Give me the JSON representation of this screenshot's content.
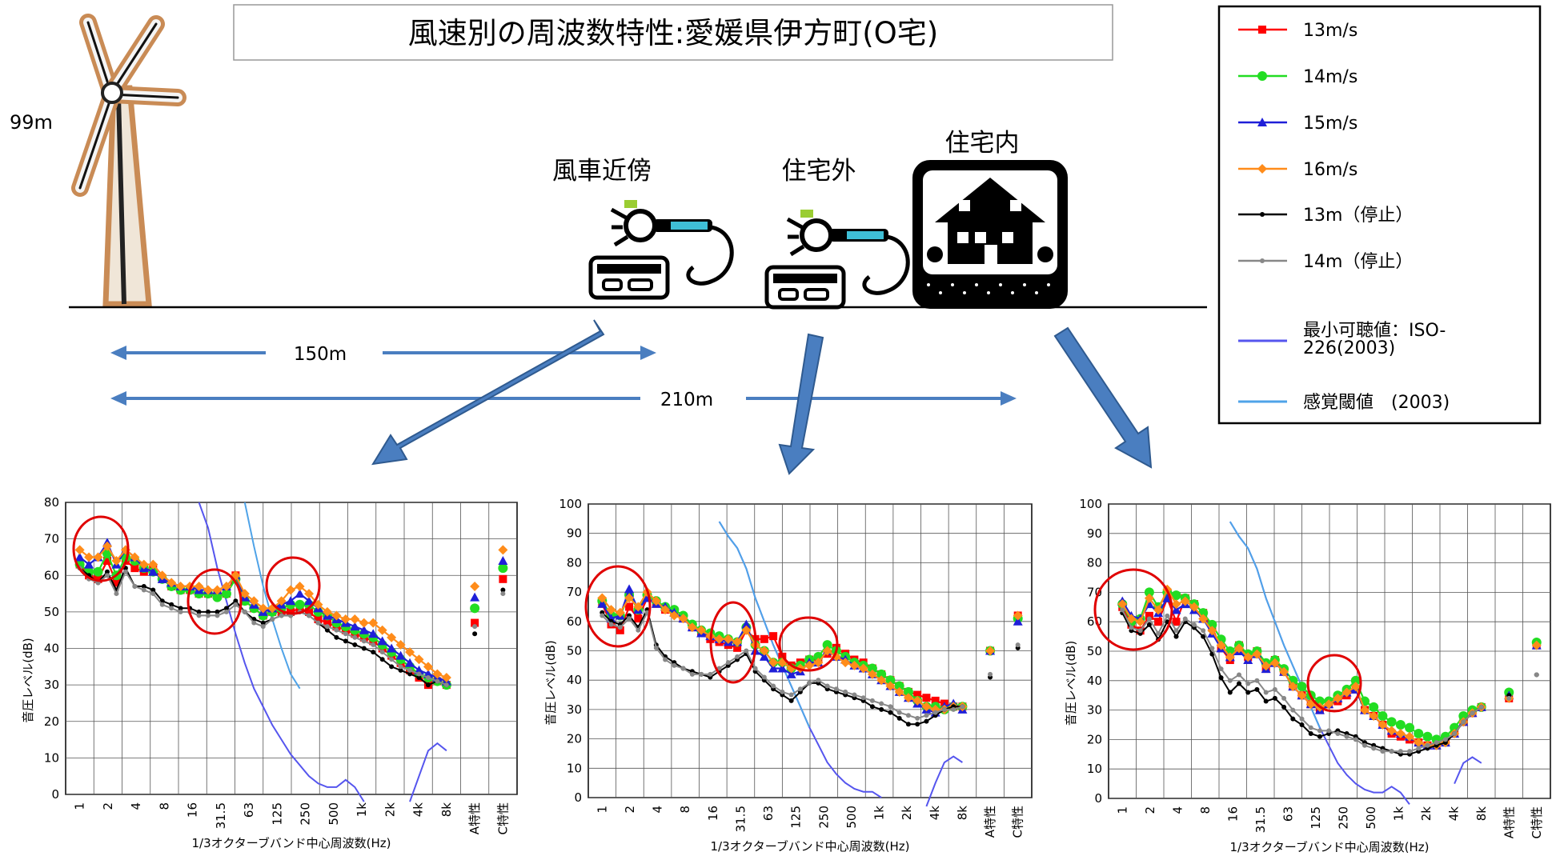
{
  "title": "風速別の周波数特性:愛媛県伊方町(O宅)",
  "scene": {
    "height_label": "99m",
    "loc_near": "風車近傍",
    "loc_outside": "住宅外",
    "loc_inside": "住宅内",
    "dist_150": "150m",
    "dist_210": "210m"
  },
  "legend": [
    {
      "label": "13m/s",
      "color": "#ff0000",
      "marker": "square"
    },
    {
      "label": "14m/s",
      "color": "#22dd22",
      "marker": "circle"
    },
    {
      "label": "15m/s",
      "color": "#1f1fd8",
      "marker": "triangle"
    },
    {
      "label": "16m/s",
      "color": "#ff8c1a",
      "marker": "diamond"
    },
    {
      "label": "13m（停止）",
      "color": "#000000",
      "marker": "dot"
    },
    {
      "label": "14m（停止）",
      "color": "#888888",
      "marker": "dot"
    },
    {
      "label": "最小可聴値：ISO-226(2003)",
      "color": "#5555ee",
      "marker": "none"
    },
    {
      "label": "感覚閾値　(2003)",
      "color": "#4fa3e8",
      "marker": "none"
    }
  ],
  "chart_data": [
    {
      "type": "line",
      "name": "風車近傍",
      "xlabel": "1/3オクターブバンド中心周波数(Hz)",
      "ylabel": "音圧レベル(dB)",
      "ylim": [
        0,
        80
      ],
      "yticks": [
        0,
        10,
        20,
        30,
        40,
        50,
        60,
        70,
        80
      ],
      "x_tick_labels": [
        "1",
        "2",
        "4",
        "8",
        "16",
        "31.5",
        "63",
        "125",
        "250",
        "500",
        "1k",
        "2k",
        "4k",
        "8k",
        "A特性",
        "C特性"
      ],
      "series": [
        {
          "name": "13m/s",
          "values": [
            63,
            60,
            59,
            64,
            58,
            64,
            62,
            61,
            62,
            59,
            57,
            56,
            56,
            55,
            55,
            55,
            55,
            60,
            53,
            51,
            49,
            50,
            50,
            50,
            51,
            50,
            48,
            47,
            46,
            45,
            44,
            43,
            42,
            40,
            38,
            36,
            34,
            32,
            30,
            31,
            30
          ],
          "A": 47,
          "C": 59
        },
        {
          "name": "14m/s",
          "values": [
            63,
            61,
            61,
            66,
            60,
            65,
            64,
            62,
            61,
            59,
            57,
            56,
            56,
            55,
            55,
            54,
            55,
            59,
            53,
            51,
            49,
            50,
            51,
            52,
            52,
            52,
            50,
            49,
            47,
            46,
            45,
            44,
            43,
            41,
            39,
            37,
            35,
            33,
            32,
            31,
            30
          ],
          "A": 51,
          "C": 62
        },
        {
          "name": "15m/s",
          "values": [
            65,
            63,
            65,
            69,
            63,
            67,
            65,
            62,
            61,
            59,
            58,
            57,
            57,
            56,
            56,
            56,
            57,
            60,
            54,
            52,
            50,
            51,
            52,
            53,
            55,
            53,
            51,
            49,
            48,
            47,
            46,
            45,
            44,
            42,
            40,
            38,
            36,
            34,
            33,
            32,
            31
          ],
          "A": 54,
          "C": 64
        },
        {
          "name": "16m/s",
          "values": [
            67,
            65,
            65,
            68,
            64,
            67,
            65,
            63,
            63,
            60,
            58,
            57,
            57,
            57,
            56,
            56,
            57,
            60,
            55,
            53,
            51,
            51,
            53,
            56,
            57,
            55,
            52,
            50,
            49,
            48,
            48,
            47,
            47,
            45,
            43,
            41,
            39,
            37,
            35,
            33,
            32
          ],
          "A": 57,
          "C": 67
        },
        {
          "name": "13m（停止）",
          "values": [
            62,
            60,
            58,
            61,
            56,
            62,
            57,
            57,
            56,
            53,
            52,
            51,
            51,
            50,
            50,
            50,
            51,
            53,
            50,
            48,
            47,
            48,
            49,
            49,
            50,
            49,
            47,
            45,
            43,
            42,
            41,
            40,
            39,
            37,
            35,
            34,
            33,
            32,
            30,
            31,
            30
          ],
          "A": 44,
          "C": 56
        },
        {
          "name": "14m（停止）",
          "values": [
            62,
            59,
            58,
            60,
            55,
            61,
            57,
            56,
            55,
            52,
            51,
            50,
            50,
            49,
            49,
            49,
            50,
            52,
            50,
            47,
            46,
            48,
            49,
            49,
            50,
            49,
            47,
            46,
            45,
            44,
            43,
            42,
            41,
            39,
            37,
            35,
            34,
            33,
            32,
            31,
            30
          ],
          "A": 46,
          "C": 55
        }
      ],
      "threshold": [
        null,
        null,
        null,
        null,
        null,
        null,
        null,
        null,
        null,
        null,
        null,
        null,
        null,
        80,
        73,
        62,
        53,
        44,
        36,
        29,
        24,
        19,
        15,
        11,
        8,
        5,
        3,
        2,
        2,
        4,
        2,
        -2,
        null,
        null,
        null,
        null,
        -2,
        5,
        12,
        14,
        12
      ]
    },
    {
      "type": "line",
      "name": "住宅外",
      "xlabel": "1/3オクターブバンド中心周波数(Hz)",
      "ylabel": "音圧レベル(dB)",
      "ylim": [
        0,
        100
      ],
      "yticks": [
        0,
        10,
        20,
        30,
        40,
        50,
        60,
        70,
        80,
        90,
        100
      ],
      "x_tick_labels": [
        "1",
        "2",
        "4",
        "8",
        "16",
        "31.5",
        "63",
        "125",
        "250",
        "500",
        "1k",
        "2k",
        "4k",
        "8k",
        "A特性",
        "C特性"
      ],
      "series": [
        {
          "name": "13m/s",
          "values": [
            66,
            59,
            57,
            65,
            61,
            68,
            66,
            64,
            63,
            61,
            58,
            56,
            54,
            53,
            52,
            51,
            57,
            54,
            54,
            55,
            48,
            45,
            46,
            47,
            47,
            49,
            51,
            49,
            47,
            46,
            44,
            42,
            40,
            38,
            36,
            35,
            34,
            33,
            32,
            31,
            31
          ],
          "A": 50,
          "C": 62
        },
        {
          "name": "14m/s",
          "values": [
            67,
            62,
            62,
            69,
            64,
            69,
            67,
            65,
            64,
            62,
            59,
            57,
            56,
            55,
            54,
            53,
            58,
            52,
            50,
            46,
            46,
            44,
            45,
            47,
            48,
            52,
            50,
            48,
            46,
            45,
            44,
            42,
            40,
            38,
            36,
            33,
            31,
            31,
            30,
            31,
            31
          ],
          "A": 50,
          "C": 61
        },
        {
          "name": "15m/s",
          "values": [
            66,
            61,
            62,
            71,
            64,
            68,
            66,
            65,
            63,
            61,
            58,
            56,
            55,
            54,
            53,
            53,
            59,
            50,
            48,
            44,
            44,
            42,
            43,
            46,
            46,
            50,
            48,
            47,
            45,
            44,
            42,
            40,
            38,
            36,
            34,
            32,
            30,
            29,
            31,
            32,
            30
          ],
          "A": 50,
          "C": 60
        },
        {
          "name": "16m/s",
          "values": [
            68,
            64,
            63,
            68,
            65,
            70,
            67,
            64,
            62,
            61,
            58,
            57,
            55,
            54,
            54,
            53,
            57,
            52,
            50,
            46,
            46,
            44,
            44,
            45,
            46,
            50,
            48,
            46,
            45,
            44,
            42,
            40,
            38,
            36,
            34,
            33,
            31,
            30,
            30,
            31,
            31
          ],
          "A": 50,
          "C": 62
        },
        {
          "name": "13m（停止）",
          "values": [
            63,
            60,
            59,
            62,
            58,
            64,
            52,
            48,
            46,
            44,
            43,
            42,
            41,
            43,
            45,
            47,
            49,
            43,
            40,
            37,
            35,
            33,
            36,
            39,
            39,
            37,
            36,
            35,
            34,
            33,
            31,
            30,
            29,
            27,
            25,
            25,
            26,
            28,
            30,
            31,
            31
          ],
          "A": 41,
          "C": 51
        },
        {
          "name": "14m（停止）",
          "values": [
            62,
            59,
            58,
            61,
            57,
            63,
            51,
            47,
            45,
            44,
            42,
            42,
            42,
            44,
            46,
            48,
            50,
            44,
            41,
            38,
            36,
            35,
            37,
            39,
            40,
            38,
            37,
            36,
            35,
            34,
            33,
            32,
            31,
            29,
            28,
            27,
            28,
            29,
            30,
            30,
            31
          ],
          "A": 42,
          "C": 52
        }
      ],
      "threshold": [
        null,
        null,
        null,
        null,
        null,
        null,
        null,
        null,
        null,
        null,
        null,
        null,
        null,
        94,
        89,
        85,
        78,
        68,
        60,
        52,
        45,
        38,
        31,
        24,
        18,
        12,
        8,
        5,
        3,
        2,
        2,
        0,
        null,
        null,
        null,
        null,
        -3,
        5,
        12,
        14,
        12
      ]
    },
    {
      "type": "line",
      "name": "住宅内",
      "xlabel": "1/3オクターブバンド中心周波数(Hz)",
      "ylabel": "音圧レベル(dB)",
      "ylim": [
        0,
        100
      ],
      "yticks": [
        0,
        10,
        20,
        30,
        40,
        50,
        60,
        70,
        80,
        90,
        100
      ],
      "x_tick_labels": [
        "1",
        "2",
        "4",
        "8",
        "16",
        "31.5",
        "63",
        "125",
        "250",
        "500",
        "1k",
        "2k",
        "4k",
        "8k",
        "A特性",
        "C特性"
      ],
      "series": [
        {
          "name": "13m/s",
          "values": [
            65,
            59,
            57,
            62,
            60,
            68,
            60,
            68,
            66,
            63,
            58,
            51,
            47,
            52,
            48,
            50,
            44,
            47,
            43,
            38,
            35,
            32,
            30,
            32,
            33,
            35,
            37,
            30,
            28,
            25,
            22,
            21,
            20,
            19,
            18,
            18,
            19,
            22,
            26,
            29,
            31
          ],
          "A": 34,
          "C": 52
        },
        {
          "name": "14m/s",
          "values": [
            66,
            60,
            61,
            70,
            65,
            70,
            69,
            68,
            66,
            63,
            59,
            54,
            50,
            52,
            49,
            50,
            46,
            47,
            44,
            40,
            38,
            35,
            33,
            33,
            35,
            37,
            40,
            33,
            31,
            28,
            26,
            25,
            24,
            22,
            21,
            20,
            21,
            24,
            28,
            30,
            31
          ],
          "A": 36,
          "C": 53
        },
        {
          "name": "15m/s",
          "values": [
            67,
            62,
            61,
            66,
            63,
            68,
            64,
            66,
            64,
            61,
            56,
            51,
            48,
            50,
            47,
            49,
            44,
            46,
            43,
            38,
            35,
            32,
            30,
            32,
            34,
            36,
            37,
            30,
            28,
            25,
            23,
            22,
            21,
            19,
            18,
            18,
            19,
            22,
            26,
            29,
            31
          ],
          "A": 35,
          "C": 52
        },
        {
          "name": "16m/s",
          "values": [
            66,
            61,
            60,
            68,
            64,
            71,
            66,
            67,
            65,
            61,
            57,
            52,
            48,
            51,
            48,
            49,
            45,
            46,
            43,
            38,
            35,
            32,
            31,
            32,
            34,
            36,
            38,
            30,
            28,
            25,
            23,
            22,
            21,
            19,
            18,
            18,
            19,
            22,
            26,
            29,
            31
          ],
          "A": 34,
          "C": 52
        },
        {
          "name": "13m（停止）",
          "values": [
            63,
            57,
            56,
            59,
            54,
            60,
            55,
            60,
            58,
            55,
            49,
            41,
            36,
            39,
            36,
            37,
            33,
            34,
            31,
            27,
            25,
            22,
            21,
            22,
            23,
            22,
            21,
            19,
            18,
            17,
            16,
            15,
            15,
            16,
            17,
            18,
            19,
            22,
            26,
            29,
            31
          ],
          "A": 35,
          "C": 42
        },
        {
          "name": "14m（停止）",
          "values": [
            64,
            58,
            57,
            61,
            56,
            62,
            57,
            61,
            59,
            57,
            51,
            44,
            40,
            42,
            39,
            40,
            36,
            37,
            34,
            30,
            27,
            24,
            23,
            23,
            22,
            21,
            20,
            18,
            17,
            16,
            16,
            16,
            16,
            17,
            18,
            19,
            20,
            22,
            26,
            29,
            31
          ],
          "A": 34,
          "C": 42
        }
      ],
      "threshold": [
        null,
        null,
        null,
        null,
        null,
        null,
        null,
        null,
        null,
        null,
        null,
        null,
        94,
        89,
        85,
        78,
        68,
        60,
        52,
        45,
        38,
        31,
        24,
        18,
        12,
        8,
        5,
        3,
        2,
        2,
        4,
        2,
        -2,
        null,
        null,
        null,
        null,
        5,
        12,
        14,
        12
      ]
    }
  ],
  "sensation": [
    [
      null,
      null,
      null,
      null,
      null,
      null,
      null,
      null,
      null,
      null,
      null,
      null,
      null,
      null,
      null,
      null,
      null,
      null,
      80,
      68,
      57,
      48,
      40,
      33,
      29
    ],
    [
      null,
      null,
      null,
      null,
      null,
      null,
      null,
      null,
      null,
      null,
      null,
      null,
      null,
      94,
      89,
      85,
      78,
      68,
      60,
      52,
      45,
      38,
      31,
      24
    ],
    [
      null,
      null,
      null,
      null,
      null,
      null,
      null,
      null,
      null,
      null,
      null,
      null,
      94,
      89,
      85,
      78,
      68,
      60,
      52,
      45,
      38,
      31,
      24
    ]
  ]
}
